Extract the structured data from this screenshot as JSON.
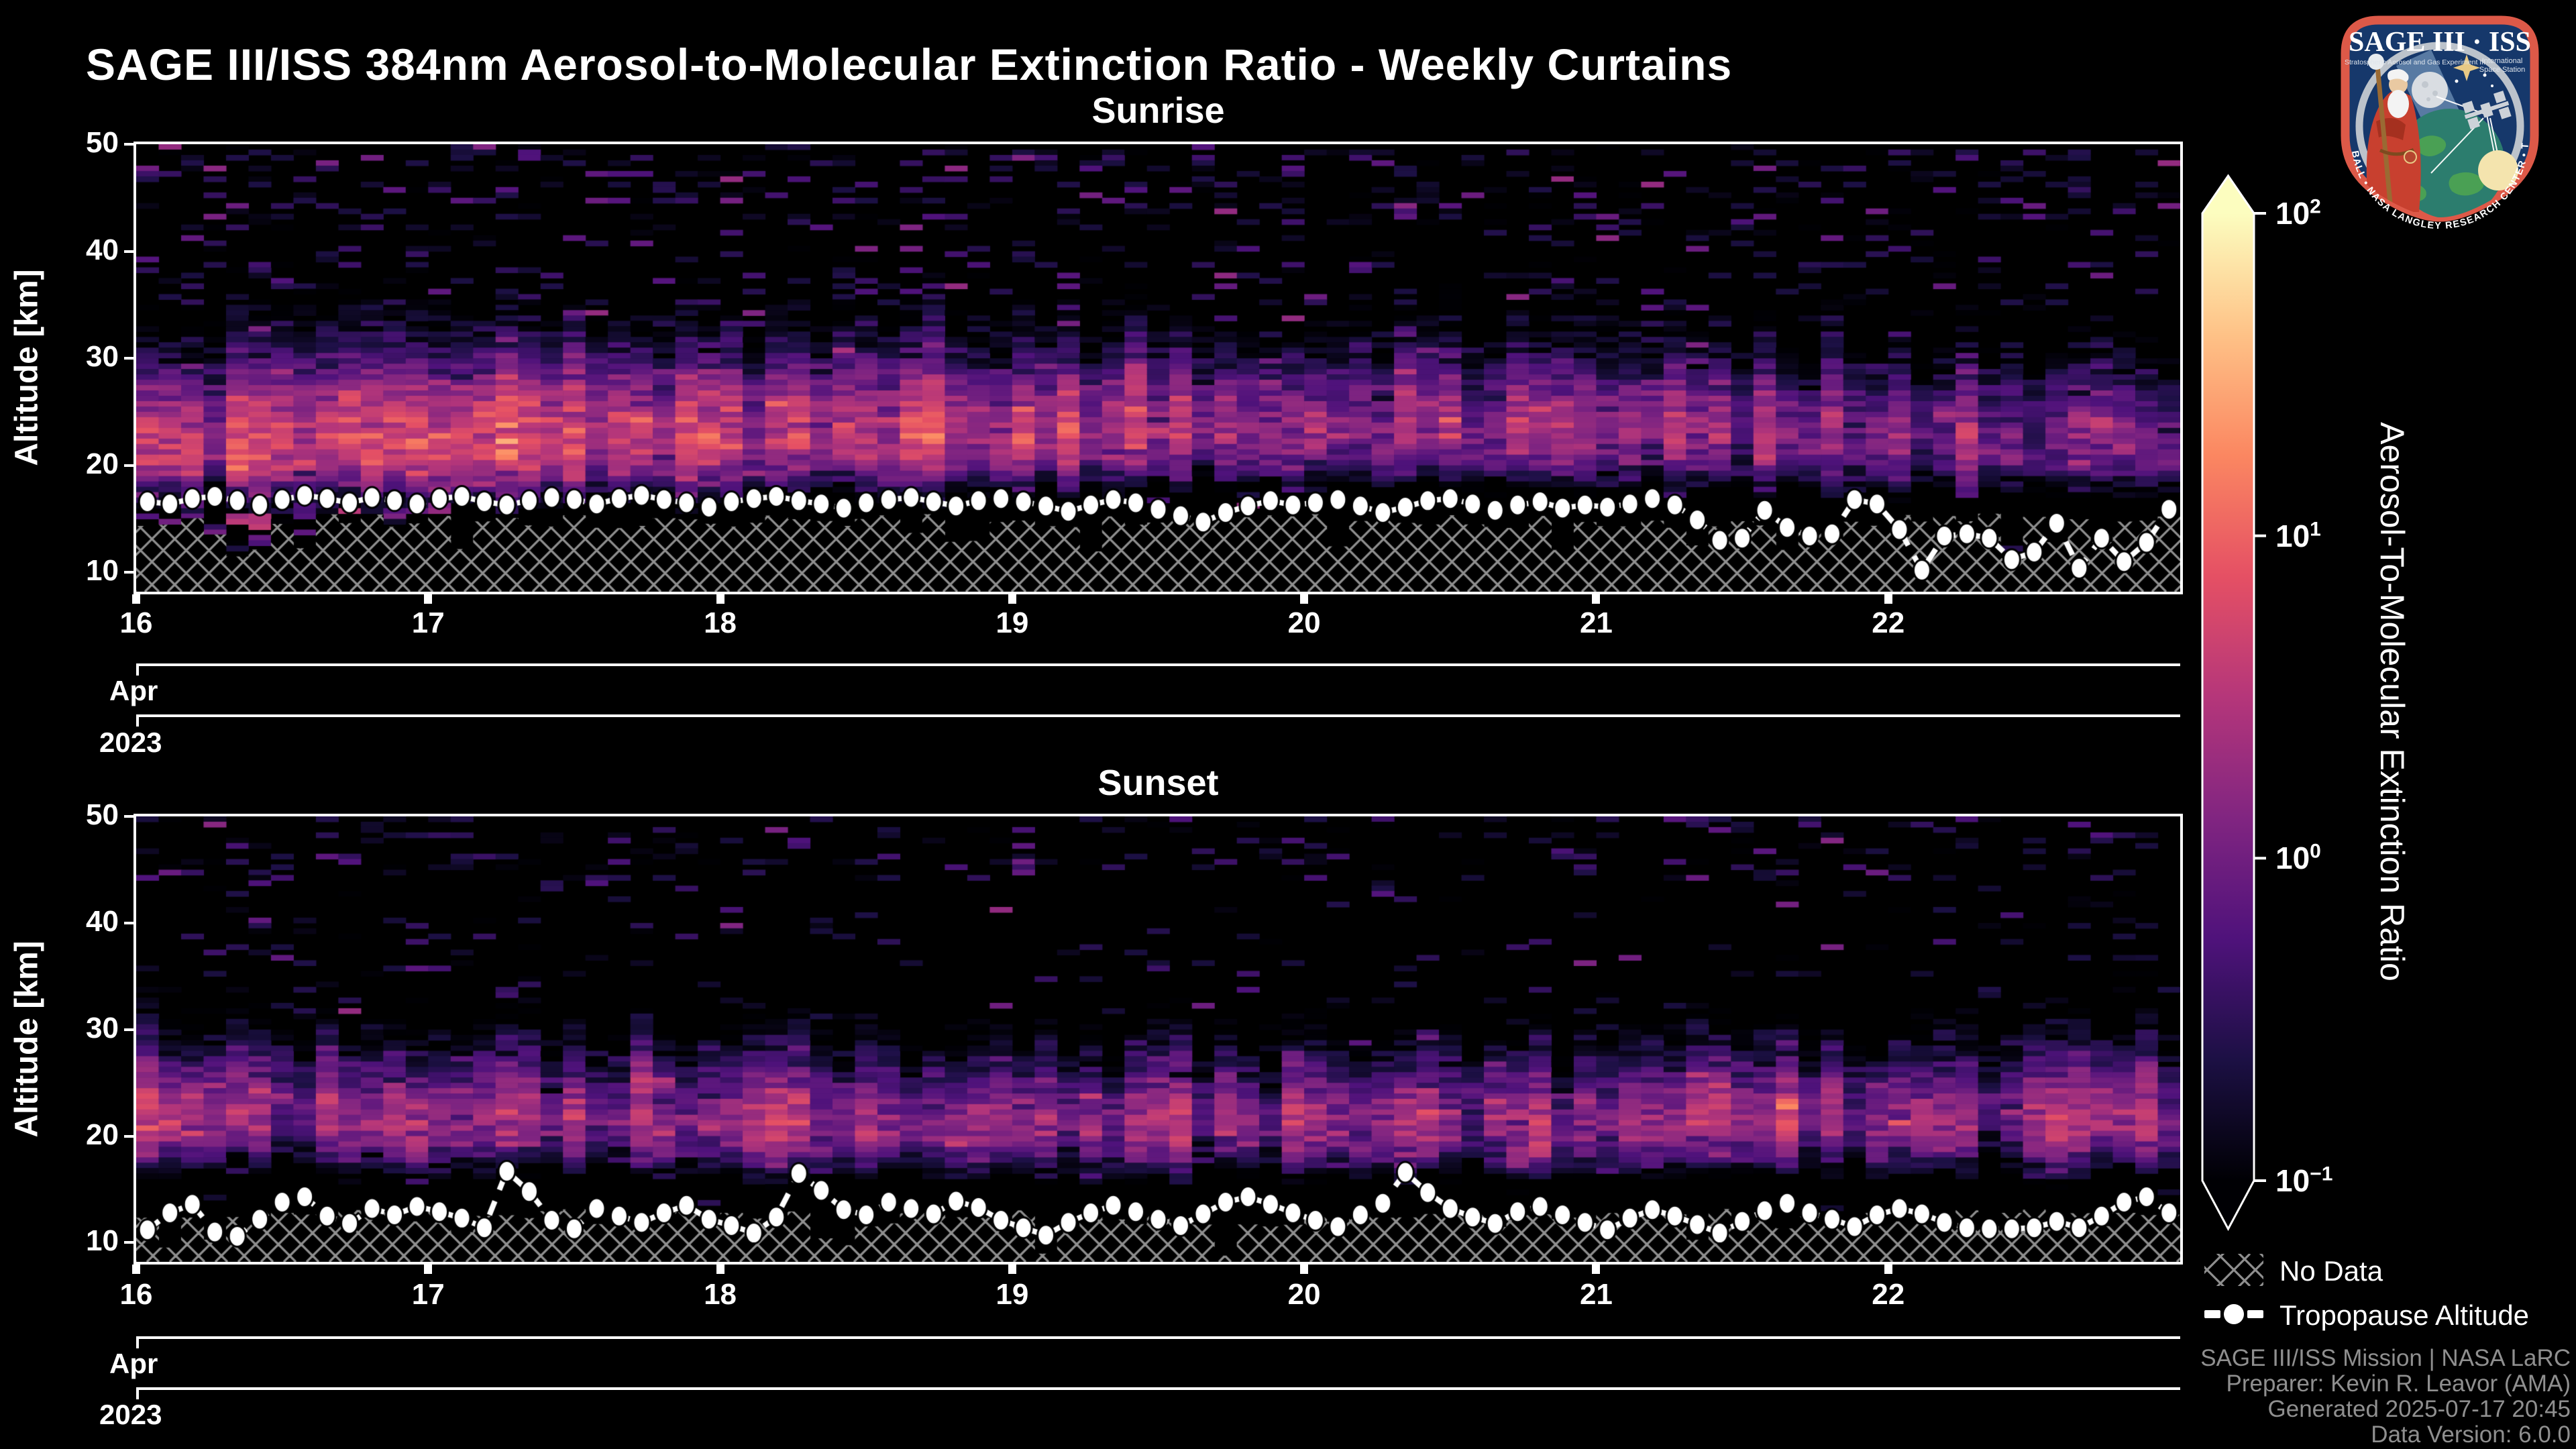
{
  "page": {
    "bg": "#000000",
    "title": "SAGE III/ISS 384nm Aerosol-to-Molecular Extinction Ratio - Weekly Curtains"
  },
  "logo": {
    "title": "SAGE III · ISS",
    "subtitle_left": "Stratospheric Aerosol and Gas Experiment III",
    "subtitle_right_1": "International",
    "subtitle_right_2": "Space Station",
    "ring_text": "BALL • NASA LANGLEY RESEARCH CENTER • TAS-I • ESA",
    "border_color": "#dd5948",
    "background_color": "#16386b"
  },
  "panels_shared": {
    "y_axis_label": "Altitude [km]",
    "y_tick_labels": [
      "10",
      "20",
      "30",
      "40",
      "50"
    ],
    "x_tick_labels": [
      "16",
      "17",
      "18",
      "19",
      "20",
      "21",
      "22"
    ],
    "month_label": "Apr",
    "year_label": "2023"
  },
  "colorbar": {
    "label": "Aerosol-To-Molecular Extinction Ratio",
    "tick_labels": [
      {
        "base": "10",
        "exp": "2",
        "value": 100
      },
      {
        "base": "10",
        "exp": "1",
        "value": 10
      },
      {
        "base": "10",
        "exp": "0",
        "value": 1
      },
      {
        "base": "10",
        "exp": "−1",
        "value": 0.1
      }
    ],
    "scale": "log",
    "colormap": "magma",
    "stops": [
      "#000004",
      "#1c1044",
      "#4f127b",
      "#812581",
      "#b5367a",
      "#e55064",
      "#fb8761",
      "#fec287",
      "#fcfdbf"
    ]
  },
  "legend": {
    "no_data_label": "No Data",
    "tropopause_label": "Tropopause Altitude",
    "hatch_color": "#8f8f8f"
  },
  "attribution": {
    "color": "#8f8f8f",
    "lines": [
      "SAGE III/ISS Mission | NASA LaRC",
      "Preparer: Kevin R. Leavor (AMA)",
      "Generated 2025-07-17 20:45",
      "Data Version: 6.0.0"
    ]
  },
  "chart_data": [
    {
      "type": "heatmap",
      "title": "Sunrise",
      "x_start": "2023-04-16",
      "x_end": "2023-04-23",
      "x_tick_days": [
        0,
        1,
        2,
        3,
        4,
        5,
        6
      ],
      "y_label": "Altitude [km]",
      "y_range": [
        8.2,
        50
      ],
      "y_ticks": [
        10,
        20,
        30,
        40,
        50
      ],
      "value_scale": "log",
      "vmin": 0.1,
      "vmax": 100,
      "n_profiles": 91,
      "tropopause_km": [
        16.6,
        16.4,
        16.9,
        17.1,
        16.7,
        16.3,
        16.8,
        17.2,
        16.9,
        16.5,
        17.0,
        16.7,
        16.4,
        16.9,
        17.1,
        16.6,
        16.3,
        16.7,
        17.0,
        16.8,
        16.4,
        16.9,
        17.2,
        16.8,
        16.5,
        16.1,
        16.6,
        16.9,
        17.1,
        16.7,
        16.4,
        16.0,
        16.5,
        16.8,
        17.0,
        16.6,
        16.2,
        16.7,
        16.9,
        16.6,
        16.2,
        15.7,
        16.3,
        16.8,
        16.5,
        15.9,
        15.3,
        14.7,
        15.6,
        16.2,
        16.7,
        16.3,
        16.5,
        16.8,
        16.2,
        15.6,
        16.1,
        16.7,
        16.9,
        16.4,
        15.8,
        16.3,
        16.6,
        16.0,
        16.3,
        16.1,
        16.4,
        16.9,
        16.3,
        14.9,
        13.0,
        13.2,
        15.8,
        14.2,
        13.4,
        13.6,
        16.8,
        16.4,
        14.0,
        10.2,
        13.4,
        13.6,
        13.2,
        11.2,
        11.9,
        14.6,
        10.4,
        13.2,
        11.0,
        12.8,
        15.9
      ],
      "layer_model": {
        "seed": 42,
        "core_amp_points": [
          [
            0,
            4.5
          ],
          [
            0.18,
            3.6
          ],
          [
            0.38,
            2.6
          ],
          [
            0.58,
            1.7
          ],
          [
            0.78,
            1.2
          ],
          [
            1,
            1.0
          ]
        ],
        "center_points": [
          [
            0,
            22.0
          ],
          [
            0.35,
            22.8
          ],
          [
            0.65,
            23.2
          ],
          [
            1,
            22.4
          ]
        ],
        "core_sigma_down": 2.2,
        "core_sigma_up": 2.9,
        "broad_amp_ratio": 0.22,
        "broad_sigma_up": 5.5,
        "broad_sigma_down": 1.4,
        "col_noise_sigma": 0.45,
        "cell_noise_sigma": 0.5,
        "speckle_alt_mid": 33,
        "speckle_alt_high": 42,
        "speckle_prob_mid": 0.22,
        "speckle_prob_high": 0.3,
        "speckle_base": 0.14,
        "bottom_blob": {
          "col_max": 13,
          "prob": 0.55,
          "base": 0.5
        }
      },
      "no_data": {
        "base_top_km": 14.8,
        "noise_km": 0.7,
        "notch_prob": 0.22,
        "notch_depth_km": 2.2
      }
    },
    {
      "type": "heatmap",
      "title": "Sunset",
      "x_start": "2023-04-16",
      "x_end": "2023-04-23",
      "x_tick_days": [
        0,
        1,
        2,
        3,
        4,
        5,
        6
      ],
      "y_label": "Altitude [km]",
      "y_range": [
        8.2,
        50
      ],
      "y_ticks": [
        10,
        20,
        30,
        40,
        50
      ],
      "value_scale": "log",
      "vmin": 0.1,
      "vmax": 100,
      "n_profiles": 91,
      "tropopause_km": [
        11.2,
        12.8,
        13.6,
        11.0,
        10.6,
        12.2,
        13.8,
        14.3,
        12.5,
        11.8,
        13.2,
        12.6,
        13.4,
        12.9,
        12.3,
        11.4,
        16.7,
        14.8,
        12.1,
        11.3,
        13.2,
        12.5,
        11.9,
        12.8,
        13.5,
        12.2,
        11.6,
        10.9,
        12.4,
        16.5,
        14.9,
        13.1,
        12.6,
        13.8,
        13.2,
        12.7,
        13.9,
        13.3,
        12.1,
        11.4,
        10.7,
        11.9,
        12.8,
        13.5,
        12.9,
        12.2,
        11.6,
        12.7,
        13.8,
        14.3,
        13.6,
        12.8,
        12.1,
        11.5,
        12.6,
        13.7,
        16.6,
        14.7,
        13.2,
        12.4,
        11.8,
        12.9,
        13.4,
        12.6,
        11.9,
        11.2,
        12.3,
        13.1,
        12.5,
        11.7,
        10.9,
        12.0,
        13.0,
        13.7,
        12.8,
        12.2,
        11.5,
        12.6,
        13.2,
        12.7,
        11.9,
        11.4,
        11.3,
        11.3,
        11.4,
        12.0,
        11.4,
        12.5,
        13.8,
        14.3,
        12.8
      ],
      "layer_model": {
        "seed": 7,
        "core_amp_points": [
          [
            0,
            1.5
          ],
          [
            0.3,
            1.3
          ],
          [
            0.6,
            1.35
          ],
          [
            1,
            1.4
          ]
        ],
        "center_points": [
          [
            0,
            21.4
          ],
          [
            0.5,
            20.9
          ],
          [
            1,
            21.3
          ]
        ],
        "core_sigma_down": 2.0,
        "core_sigma_up": 2.6,
        "broad_amp_ratio": 0.28,
        "broad_sigma_up": 4.8,
        "broad_sigma_down": 1.2,
        "col_noise_sigma": 0.6,
        "cell_noise_sigma": 0.5,
        "speckle_alt_mid": 30,
        "speckle_alt_high": 44,
        "speckle_prob_mid": 0.1,
        "speckle_prob_high": 0.28,
        "speckle_base": 0.13,
        "bottom_blob": {
          "col_max": -1,
          "prob": 0,
          "base": 0
        }
      },
      "no_data": {
        "base_top_km": 12.3,
        "noise_km": 0.9,
        "notch_prob": 0.18,
        "notch_depth_km": 2.0
      }
    }
  ]
}
